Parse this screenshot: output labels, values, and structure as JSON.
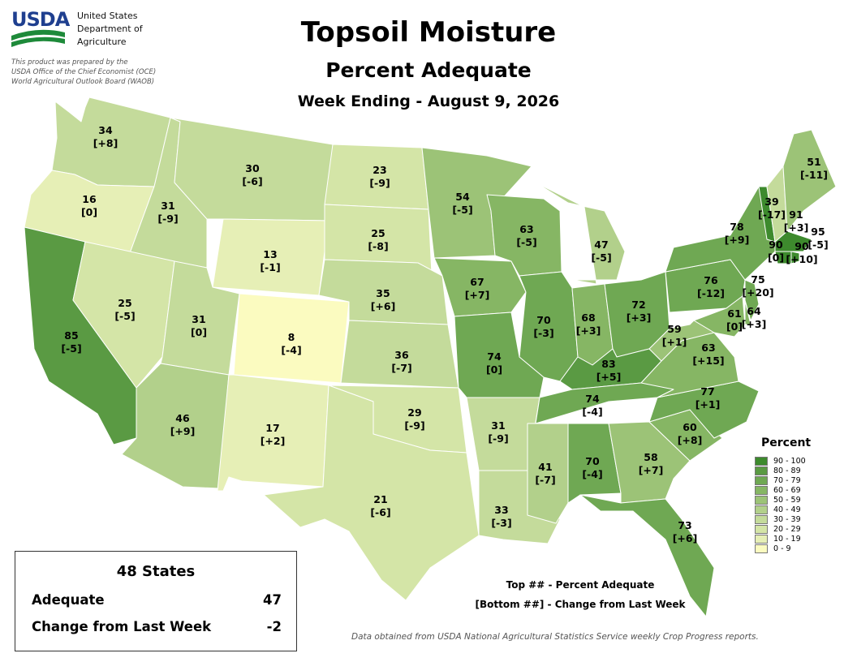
{
  "header": {
    "logo_text": "USDA",
    "agency_line1": "United States",
    "agency_line2": "Department of",
    "agency_line3": "Agriculture",
    "prep_line1": "This product was prepared by the",
    "prep_line2": "USDA Office of the Chief Economist (OCE)",
    "prep_line3": "World Agricultural Outlook Board (WAOB)",
    "title": "Topsoil Moisture",
    "subtitle": "Percent Adequate",
    "week": "Week Ending - August 9, 2026"
  },
  "legend": {
    "title": "Percent",
    "items": [
      {
        "label": "90 - 100",
        "color": "#3d8a2d"
      },
      {
        "label": "80 - 89",
        "color": "#5a9a43"
      },
      {
        "label": "70 - 79",
        "color": "#6fa853"
      },
      {
        "label": "60 - 69",
        "color": "#86b664"
      },
      {
        "label": "50 - 59",
        "color": "#9cc377"
      },
      {
        "label": "40 - 49",
        "color": "#b2d08b"
      },
      {
        "label": "30 - 39",
        "color": "#c4db9b"
      },
      {
        "label": "20 - 29",
        "color": "#d4e5a7"
      },
      {
        "label": "10 - 19",
        "color": "#e6efb6"
      },
      {
        "label": "0 - 9",
        "color": "#fbfbc0"
      }
    ]
  },
  "states": [
    {
      "abbr": "WA",
      "pct": "34",
      "chg": "[+8]",
      "value": 34
    },
    {
      "abbr": "OR",
      "pct": "16",
      "chg": "[0]",
      "value": 16
    },
    {
      "abbr": "CA",
      "pct": "85",
      "chg": "[-5]",
      "value": 85
    },
    {
      "abbr": "ID",
      "pct": "31",
      "chg": "[-9]",
      "value": 31
    },
    {
      "abbr": "NV",
      "pct": "25",
      "chg": "[-5]",
      "value": 25
    },
    {
      "abbr": "MT",
      "pct": "30",
      "chg": "[-6]",
      "value": 30
    },
    {
      "abbr": "WY",
      "pct": "13",
      "chg": "[-1]",
      "value": 13
    },
    {
      "abbr": "UT",
      "pct": "31",
      "chg": "[0]",
      "value": 31
    },
    {
      "abbr": "AZ",
      "pct": "46",
      "chg": "[+9]",
      "value": 46
    },
    {
      "abbr": "CO",
      "pct": "8",
      "chg": "[-4]",
      "value": 8
    },
    {
      "abbr": "NM",
      "pct": "17",
      "chg": "[+2]",
      "value": 17
    },
    {
      "abbr": "ND",
      "pct": "23",
      "chg": "[-9]",
      "value": 23
    },
    {
      "abbr": "SD",
      "pct": "25",
      "chg": "[-8]",
      "value": 25
    },
    {
      "abbr": "NE",
      "pct": "35",
      "chg": "[+6]",
      "value": 35
    },
    {
      "abbr": "KS",
      "pct": "36",
      "chg": "[-7]",
      "value": 36
    },
    {
      "abbr": "OK",
      "pct": "29",
      "chg": "[-9]",
      "value": 29
    },
    {
      "abbr": "TX",
      "pct": "21",
      "chg": "[-6]",
      "value": 21
    },
    {
      "abbr": "MN",
      "pct": "54",
      "chg": "[-5]",
      "value": 54
    },
    {
      "abbr": "IA",
      "pct": "67",
      "chg": "[+7]",
      "value": 67
    },
    {
      "abbr": "MO",
      "pct": "74",
      "chg": "[0]",
      "value": 74
    },
    {
      "abbr": "AR",
      "pct": "31",
      "chg": "[-9]",
      "value": 31
    },
    {
      "abbr": "LA",
      "pct": "33",
      "chg": "[-3]",
      "value": 33
    },
    {
      "abbr": "WI",
      "pct": "63",
      "chg": "[-5]",
      "value": 63
    },
    {
      "abbr": "IL",
      "pct": "70",
      "chg": "[-3]",
      "value": 70
    },
    {
      "abbr": "MI",
      "pct": "47",
      "chg": "[-5]",
      "value": 47
    },
    {
      "abbr": "IN",
      "pct": "68",
      "chg": "[+3]",
      "value": 68
    },
    {
      "abbr": "OH",
      "pct": "72",
      "chg": "[+3]",
      "value": 72
    },
    {
      "abbr": "KY",
      "pct": "83",
      "chg": "[+5]",
      "value": 83
    },
    {
      "abbr": "TN",
      "pct": "74",
      "chg": "[-4]",
      "value": 74
    },
    {
      "abbr": "MS",
      "pct": "41",
      "chg": "[-7]",
      "value": 41
    },
    {
      "abbr": "AL",
      "pct": "70",
      "chg": "[-4]",
      "value": 70
    },
    {
      "abbr": "GA",
      "pct": "58",
      "chg": "[+7]",
      "value": 58
    },
    {
      "abbr": "FL",
      "pct": "73",
      "chg": "[+6]",
      "value": 73
    },
    {
      "abbr": "SC",
      "pct": "60",
      "chg": "[+8]",
      "value": 60
    },
    {
      "abbr": "NC",
      "pct": "77",
      "chg": "[+1]",
      "value": 77
    },
    {
      "abbr": "VA",
      "pct": "63",
      "chg": "[+15]",
      "value": 63
    },
    {
      "abbr": "WV",
      "pct": "59",
      "chg": "[+1]",
      "value": 59
    },
    {
      "abbr": "PA",
      "pct": "76",
      "chg": "[-12]",
      "value": 76
    },
    {
      "abbr": "NY",
      "pct": "78",
      "chg": "[+9]",
      "value": 78
    },
    {
      "abbr": "MD",
      "pct": "61",
      "chg": "[0]",
      "value": 61
    },
    {
      "abbr": "DE",
      "pct": "64",
      "chg": "[+3]",
      "value": 64
    },
    {
      "abbr": "NJ",
      "pct": "75",
      "chg": "[+20]",
      "value": 75
    },
    {
      "abbr": "CT",
      "pct": "90",
      "chg": "[0]",
      "value": 90
    },
    {
      "abbr": "RI",
      "pct": "90",
      "chg": "[+10]",
      "value": 90
    },
    {
      "abbr": "MA",
      "pct": "95",
      "chg": "[-5]",
      "value": 95
    },
    {
      "abbr": "VT",
      "pct": "91",
      "chg": "[+3]",
      "value": 91
    },
    {
      "abbr": "NH",
      "pct": "39",
      "chg": "[-17]",
      "value": 39
    },
    {
      "abbr": "ME",
      "pct": "51",
      "chg": "[-11]",
      "value": 51
    }
  ],
  "summary": {
    "title": "48 States",
    "adequate_label": "Adequate",
    "adequate_value": "47",
    "change_label": "Change from Last Week",
    "change_value": "-2"
  },
  "notes": {
    "line1": "Top ## - Percent Adequate",
    "line2": "[Bottom ##] - Change from Last Week"
  },
  "source": "Data obtained from USDA National Agricultural Statistics Service weekly Crop Progress reports."
}
